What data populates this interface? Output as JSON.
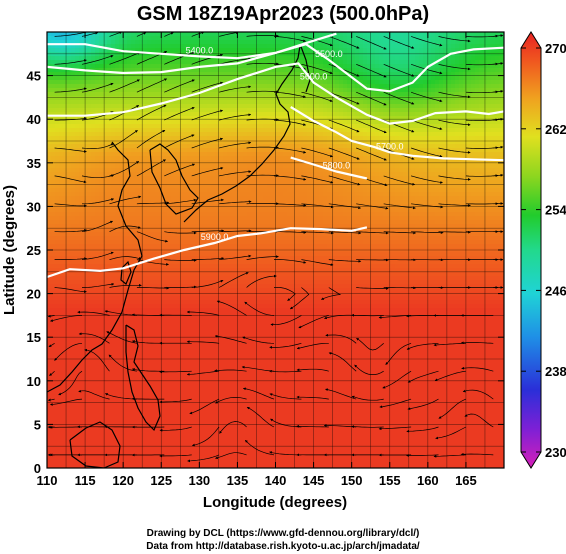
{
  "title": "GSM 18Z19Apr2023 (500.0hPa)",
  "xlabel": "Longitude (degrees)",
  "ylabel": "Latitude  (degrees)",
  "credits": {
    "line1": "Drawing by DCL (https://www.gfd-dennou.org/library/dcl/)",
    "line2": "Data from http://database.rish.kyoto-u.ac.jp/arch/jmadata/"
  },
  "chart_data": {
    "type": "heatmap",
    "field": "temperature",
    "xlim": [
      110,
      170
    ],
    "ylim": [
      0,
      50
    ],
    "x_ticks": [
      110,
      115,
      120,
      125,
      130,
      135,
      140,
      145,
      150,
      155,
      160,
      165
    ],
    "y_ticks": [
      0,
      5,
      10,
      15,
      20,
      25,
      30,
      35,
      40,
      45
    ],
    "colorbar": {
      "min": 230,
      "max": 270,
      "ticks": [
        230,
        238,
        246,
        254,
        262,
        270
      ],
      "colors": [
        "#d61fb8",
        "#7d20d6",
        "#2a2fd8",
        "#1f8fe6",
        "#1fd3d6",
        "#22d98c",
        "#22cc2c",
        "#8ed61f",
        "#e0e01f",
        "#f0a01f",
        "#f05a1f",
        "#e82323"
      ]
    },
    "height_contours": [
      {
        "label": "5400.0",
        "points": [
          [
            110,
            48.6
          ],
          [
            115,
            48.6
          ],
          [
            120,
            47.8
          ],
          [
            125,
            47.5
          ],
          [
            130,
            47.2
          ],
          [
            135,
            47.0
          ],
          [
            140,
            47.6
          ],
          [
            145,
            49.0
          ],
          [
            148,
            49.8
          ]
        ]
      },
      {
        "label": "5500.0",
        "points": [
          [
            110,
            46.0
          ],
          [
            115,
            45.6
          ],
          [
            120,
            45.3
          ],
          [
            125,
            45.4
          ],
          [
            130,
            46.0
          ],
          [
            135,
            46.4
          ],
          [
            140,
            47.6
          ],
          [
            144,
            48.6
          ],
          [
            147,
            46.8
          ],
          [
            150,
            44.8
          ],
          [
            152,
            43.5
          ],
          [
            155,
            43.2
          ],
          [
            158,
            44.2
          ],
          [
            160,
            46.0
          ],
          [
            163,
            47.5
          ],
          [
            166,
            48.0
          ],
          [
            170,
            48.2
          ]
        ]
      },
      {
        "label": "5600.0",
        "points": [
          [
            110,
            40.4
          ],
          [
            115,
            40.4
          ],
          [
            120,
            40.8
          ],
          [
            125,
            41.8
          ],
          [
            130,
            43.0
          ],
          [
            135,
            44.6
          ],
          [
            140,
            46.0
          ],
          [
            143,
            46.4
          ],
          [
            145,
            44.2
          ],
          [
            148,
            42.5
          ],
          [
            152,
            40.5
          ],
          [
            155,
            39.5
          ],
          [
            158,
            39.8
          ],
          [
            161,
            40.7
          ],
          [
            165,
            40.9
          ],
          [
            168,
            40.6
          ],
          [
            170,
            40.9
          ]
        ]
      },
      {
        "label": "5700.0",
        "points": [
          [
            142,
            41.4
          ],
          [
            145,
            39.8
          ],
          [
            148,
            38.5
          ],
          [
            150,
            37.5
          ],
          [
            153,
            36.8
          ],
          [
            155,
            36.2
          ],
          [
            158,
            35.8
          ],
          [
            162,
            35.5
          ],
          [
            166,
            35.4
          ],
          [
            170,
            35.3
          ]
        ]
      },
      {
        "label": "5800.0",
        "points": [
          [
            142,
            35.6
          ],
          [
            145,
            34.8
          ],
          [
            148,
            34.0
          ],
          [
            152,
            33.2
          ]
        ]
      },
      {
        "label": "5900.0",
        "points": [
          [
            110,
            21.9
          ],
          [
            113,
            22.8
          ],
          [
            117,
            22.6
          ],
          [
            120,
            22.9
          ],
          [
            124,
            24.0
          ],
          [
            128,
            25.0
          ],
          [
            132,
            25.8
          ],
          [
            135,
            26.6
          ],
          [
            138,
            26.9
          ],
          [
            142,
            27.5
          ],
          [
            146,
            27.4
          ],
          [
            150,
            27.2
          ],
          [
            152,
            27.6
          ]
        ]
      }
    ],
    "contour_labels": [
      "5400.0",
      "5500.0",
      "5600.0",
      "5700.0",
      "5800.0",
      "5900.0"
    ]
  }
}
